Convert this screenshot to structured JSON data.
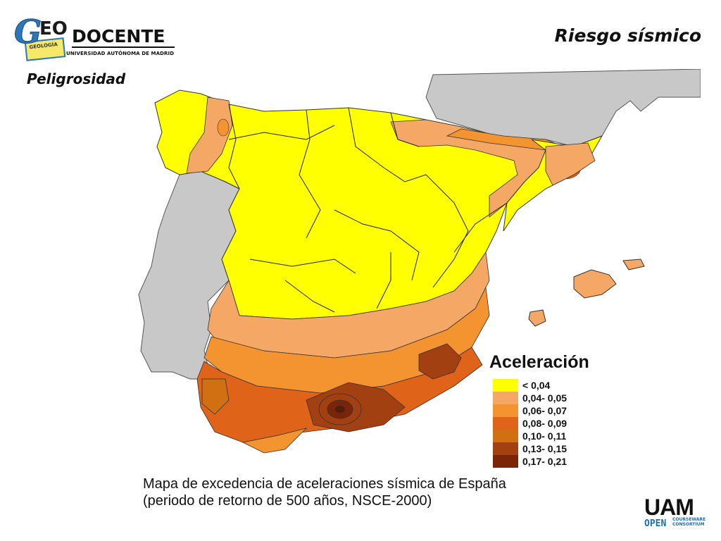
{
  "header": {
    "logo": {
      "g": "G",
      "eo": "EO",
      "docente": "DOCENTE",
      "university": "UNIVERSIDAD AUTÓNOMA DE MADRID",
      "card_text": "GEOLOGÍA"
    },
    "title": "Riesgo sísmico",
    "subtitle": "Peligrosidad"
  },
  "legend": {
    "title": "Aceleración",
    "items": [
      {
        "label": "< 0,04",
        "color": "#ffff00"
      },
      {
        "label": "0,04- 0,05",
        "color": "#f5a866"
      },
      {
        "label": "0,06- 0,07",
        "color": "#f39430"
      },
      {
        "label": "0,08- 0,09",
        "color": "#e0631a"
      },
      {
        "label": "0,10- 0,11",
        "color": "#d07012"
      },
      {
        "label": "0,13- 0,15",
        "color": "#a34012"
      },
      {
        "label": "0,17- 0,21",
        "color": "#7a2508"
      }
    ]
  },
  "caption": {
    "line1": "Mapa de excedencia de aceleraciones sísmica de España",
    "line2": "(periodo de retorno de 500 años, NSCE-2000)"
  },
  "footer_logo": {
    "main": "UAM",
    "sub": "OPEN",
    "tiny1": "COURSEWARE",
    "tiny2": "CONSORTIUM"
  },
  "colors": {
    "neighbor_countries": "#c8c8c8",
    "borders": "#222222"
  }
}
